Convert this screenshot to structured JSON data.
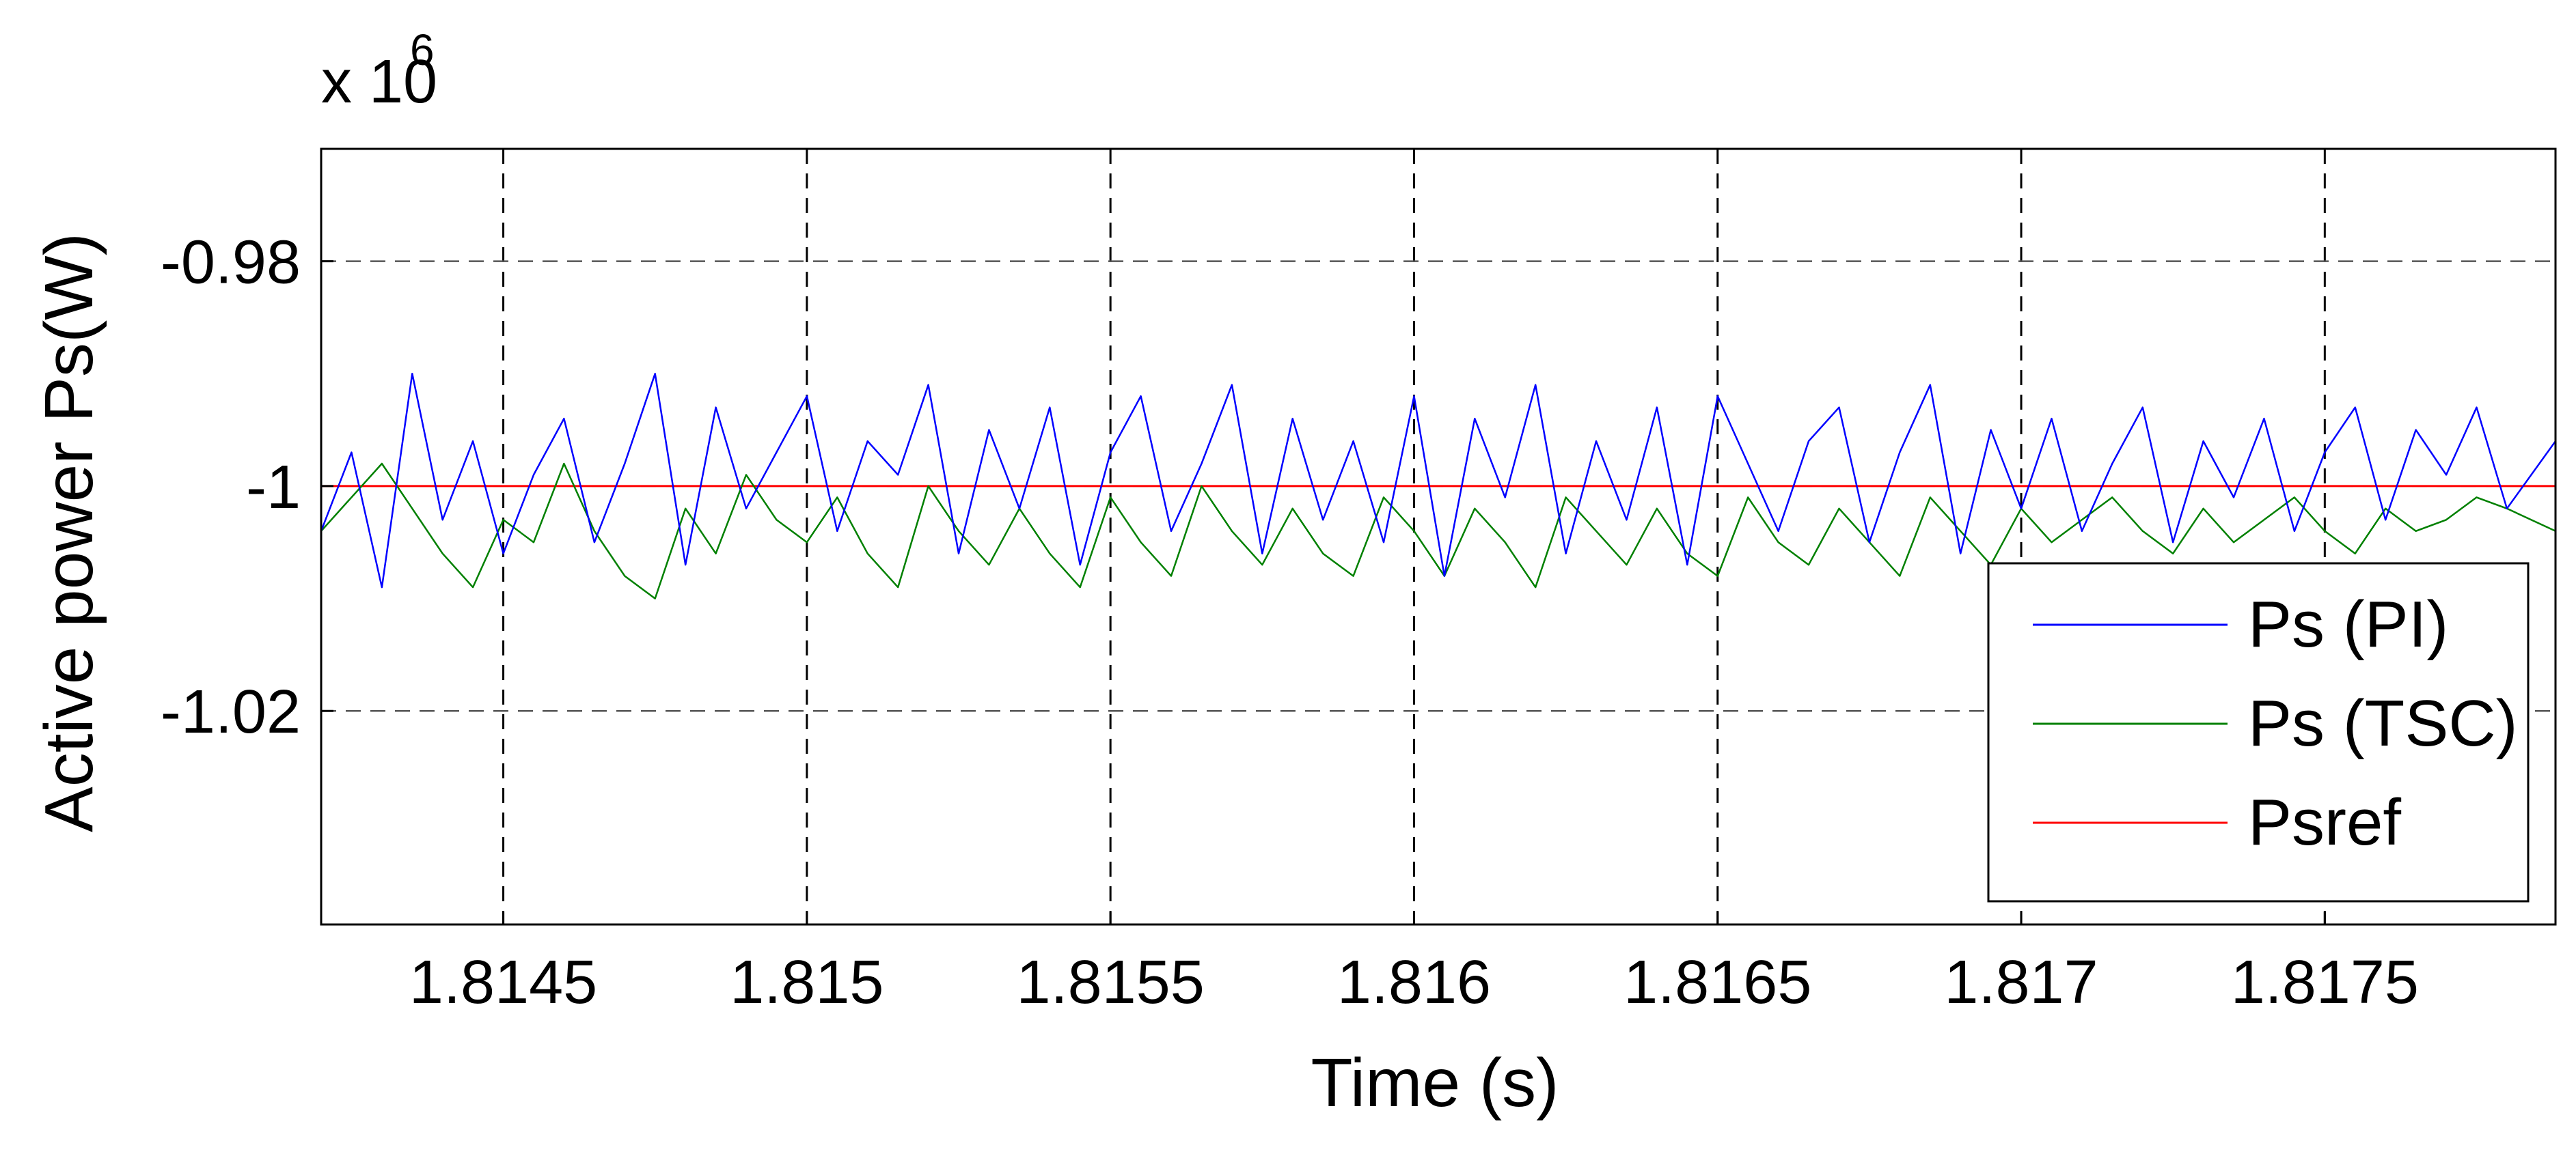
{
  "chart_data": {
    "type": "line",
    "title": "",
    "xlabel": "Time (s)",
    "ylabel": "Active power Ps(W)",
    "y_multiplier_label": "x 10",
    "y_multiplier_exponent": "6",
    "xlim": [
      1.8142,
      1.81788
    ],
    "ylim": [
      -1.035,
      -0.9975
    ],
    "ylim_note": "",
    "yscale": "linear",
    "xticks": [
      1.8145,
      1.815,
      1.8155,
      1.816,
      1.8165,
      1.817,
      1.8175
    ],
    "xtick_labels": [
      "1.8145",
      "1.815",
      "1.8155",
      "1.816",
      "1.8165",
      "1.817",
      "1.8175"
    ],
    "yticks": [
      -0.98,
      -1.0,
      -1.02
    ],
    "ytick_labels": [
      "-0.98",
      "-1",
      "-1.02"
    ],
    "grid": true,
    "legend_position": "bottom-right",
    "series": [
      {
        "name": "Ps (PI)",
        "color": "#0000ff",
        "x": [
          1.8142,
          1.81425,
          1.8143,
          1.81435,
          1.8144,
          1.81445,
          1.8145,
          1.81455,
          1.8146,
          1.81465,
          1.8147,
          1.81475,
          1.8148,
          1.81485,
          1.8149,
          1.81495,
          1.815,
          1.81505,
          1.8151,
          1.81515,
          1.8152,
          1.81525,
          1.8153,
          1.81535,
          1.8154,
          1.81545,
          1.8155,
          1.81555,
          1.8156,
          1.81565,
          1.8157,
          1.81575,
          1.8158,
          1.81585,
          1.8159,
          1.81595,
          1.816,
          1.81605,
          1.8161,
          1.81615,
          1.8162,
          1.81625,
          1.8163,
          1.81635,
          1.8164,
          1.81645,
          1.8165,
          1.81655,
          1.8166,
          1.81665,
          1.8167,
          1.81675,
          1.8168,
          1.81685,
          1.8169,
          1.81695,
          1.817,
          1.81705,
          1.8171,
          1.81715,
          1.8172,
          1.81725,
          1.8173,
          1.81735,
          1.8174,
          1.81745,
          1.8175,
          1.81755,
          1.8176,
          1.81765,
          1.8177,
          1.81775,
          1.8178,
          1.81788
        ],
        "y": [
          -1.004,
          -0.997,
          -1.009,
          -0.99,
          -1.003,
          -0.996,
          -1.006,
          -0.999,
          -0.994,
          -1.005,
          -0.998,
          -0.99,
          -1.007,
          -0.993,
          -1.002,
          -0.997,
          -0.992,
          -1.004,
          -0.996,
          -0.999,
          -0.991,
          -1.006,
          -0.995,
          -1.002,
          -0.993,
          -1.007,
          -0.997,
          -0.992,
          -1.004,
          -0.998,
          -0.991,
          -1.006,
          -0.994,
          -1.003,
          -0.996,
          -1.005,
          -0.992,
          -1.008,
          -0.994,
          -1.001,
          -0.991,
          -1.006,
          -0.996,
          -1.003,
          -0.993,
          -1.007,
          -0.992,
          -0.998,
          -1.004,
          -0.996,
          -0.993,
          -1.005,
          -0.997,
          -0.991,
          -1.006,
          -0.995,
          -1.002,
          -0.994,
          -1.004,
          -0.998,
          -0.993,
          -1.005,
          -0.996,
          -1.001,
          -0.994,
          -1.004,
          -0.997,
          -0.993,
          -1.003,
          -0.995,
          -0.999,
          -0.993,
          -1.002,
          -0.996
        ]
      },
      {
        "name": "Ps (TSC)",
        "color": "#008000",
        "x": [
          1.8142,
          1.81425,
          1.8143,
          1.81435,
          1.8144,
          1.81445,
          1.8145,
          1.81455,
          1.8146,
          1.81465,
          1.8147,
          1.81475,
          1.8148,
          1.81485,
          1.8149,
          1.81495,
          1.815,
          1.81505,
          1.8151,
          1.81515,
          1.8152,
          1.81525,
          1.8153,
          1.81535,
          1.8154,
          1.81545,
          1.8155,
          1.81555,
          1.8156,
          1.81565,
          1.8157,
          1.81575,
          1.8158,
          1.81585,
          1.8159,
          1.81595,
          1.816,
          1.81605,
          1.8161,
          1.81615,
          1.8162,
          1.81625,
          1.8163,
          1.81635,
          1.8164,
          1.81645,
          1.8165,
          1.81655,
          1.8166,
          1.81665,
          1.8167,
          1.81675,
          1.8168,
          1.81685,
          1.8169,
          1.81695,
          1.817,
          1.81705,
          1.8171,
          1.81715,
          1.8172,
          1.81725,
          1.8173,
          1.81735,
          1.8174,
          1.81745,
          1.8175,
          1.81755,
          1.8176,
          1.81765,
          1.8177,
          1.81775,
          1.8178,
          1.81788
        ],
        "y": [
          -1.004,
          -1.001,
          -0.998,
          -1.002,
          -1.006,
          -1.009,
          -1.003,
          -1.005,
          -0.998,
          -1.004,
          -1.008,
          -1.01,
          -1.002,
          -1.006,
          -0.999,
          -1.003,
          -1.005,
          -1.001,
          -1.006,
          -1.009,
          -1.0,
          -1.004,
          -1.007,
          -1.002,
          -1.006,
          -1.009,
          -1.001,
          -1.005,
          -1.008,
          -1.0,
          -1.004,
          -1.007,
          -1.002,
          -1.006,
          -1.008,
          -1.001,
          -1.004,
          -1.008,
          -1.002,
          -1.005,
          -1.009,
          -1.001,
          -1.004,
          -1.007,
          -1.002,
          -1.006,
          -1.008,
          -1.001,
          -1.005,
          -1.007,
          -1.002,
          -1.005,
          -1.008,
          -1.001,
          -1.004,
          -1.007,
          -1.002,
          -1.005,
          -1.003,
          -1.001,
          -1.004,
          -1.006,
          -1.002,
          -1.005,
          -1.003,
          -1.001,
          -1.004,
          -1.006,
          -1.002,
          -1.004,
          -1.003,
          -1.001,
          -1.002,
          -1.004
        ]
      },
      {
        "name": "Psref",
        "color": "#ff0000",
        "x": [
          1.8142,
          1.81788
        ],
        "y": [
          -1.0,
          -1.0
        ]
      }
    ]
  }
}
